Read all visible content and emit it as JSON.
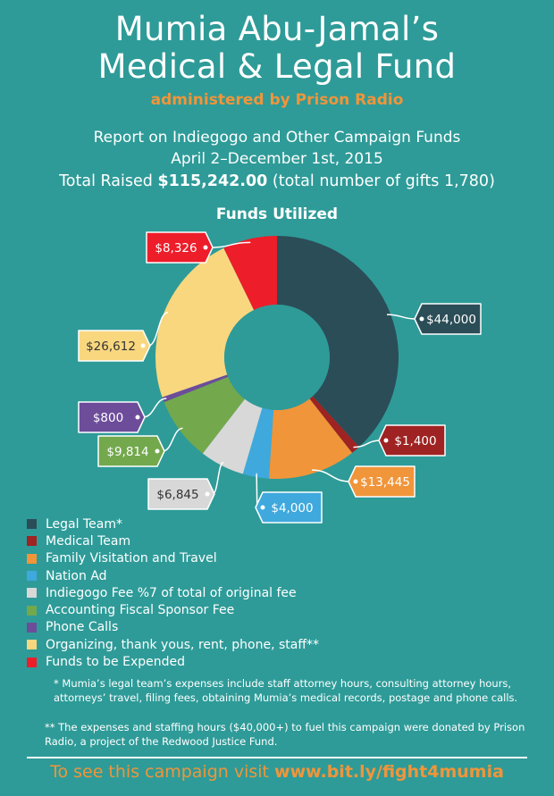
{
  "header": {
    "title_line1": "Mumia Abu-Jamal’s",
    "title_line2": "Medical & Legal Fund",
    "subtitle": "administered by Prison Radio",
    "report_line1": "Report on Indiegogo and Other Campaign Funds",
    "report_line2": "April 2–December 1st, 2015",
    "total_prefix": "Total Raised ",
    "total_amount": "$115,242.00",
    "total_suffix": " (total number of gifts 1,780)"
  },
  "chart_data": {
    "type": "pie",
    "title": "Funds Utilized",
    "donut": true,
    "slices": [
      {
        "name": "Legal Team*",
        "value": 44000,
        "label": "$44,000",
        "color": "#2b4d57"
      },
      {
        "name": "Medical Team",
        "value": 1400,
        "label": "$1,400",
        "color": "#9e2322"
      },
      {
        "name": "Family Visitation and Travel",
        "value": 13445,
        "label": "$13,445",
        "color": "#f0953a"
      },
      {
        "name": "Nation Ad",
        "value": 4000,
        "label": "$4,000",
        "color": "#3fa9dd"
      },
      {
        "name": "Indiegogo Fee %7 of total of original fee",
        "value": 6845,
        "label": "$6,845",
        "color": "#d8d8d8"
      },
      {
        "name": "Accounting Fiscal Sponsor Fee",
        "value": 9814,
        "label": "$9,814",
        "color": "#73a84d"
      },
      {
        "name": "Phone Calls",
        "value": 800,
        "label": "$800",
        "color": "#6d4c9a"
      },
      {
        "name": "Organizing, thank yous, rent, phone, staff**",
        "value": 26612,
        "label": "$26,612",
        "color": "#f9d77f"
      },
      {
        "name": "Funds to be Expended",
        "value": 8326,
        "label": "$8,326",
        "color": "#ed1d2a"
      }
    ],
    "legend_position": "bottom-left"
  },
  "notes": {
    "note1": "* Mumia’s legal team’s expenses include staff attorney hours, consulting attorney hours, attorneys’ travel, filing fees, obtaining Mumia’s medical records, postage and phone calls.",
    "note2": "** The expenses and staffing hours ($40,000+) to fuel this campaign were donated by Prison Radio, a project of the Redwood Justice Fund."
  },
  "footer": {
    "prefix": "To see this campaign visit ",
    "link": "www.bit.ly/fight4mumia"
  }
}
